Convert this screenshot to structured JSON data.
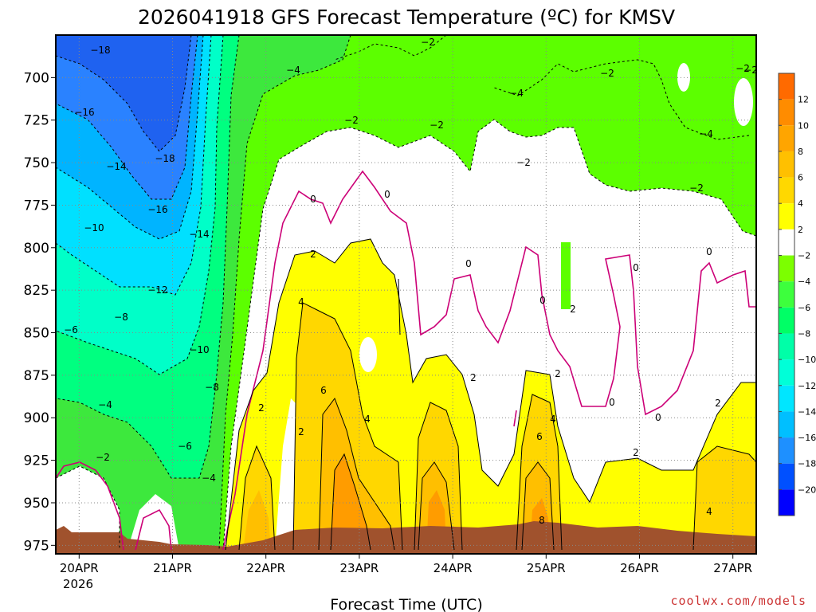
{
  "chart_data": {
    "type": "heatmap",
    "title": "2026041918 GFS Forecast Temperature (ºC) for KMSV",
    "xlabel": "Forecast Time (UTC)",
    "ylabel": "",
    "credit": "coolwx.com/models",
    "x_tick_labels": [
      "20APR",
      "21APR",
      "22APR",
      "23APR",
      "24APR",
      "25APR",
      "26APR",
      "27APR"
    ],
    "x_year_label": "2026",
    "y_tick_labels": [
      "700",
      "725",
      "750",
      "775",
      "800",
      "825",
      "850",
      "875",
      "900",
      "925",
      "950",
      "975"
    ],
    "y_axis": "pressure (hPa), decreasing upward",
    "ylim": [
      975,
      675
    ],
    "xlim": [
      "2026-04-19 18Z",
      "2026-04-27 06Z"
    ],
    "grid": true,
    "legend": "colorbar-right",
    "colorbar": {
      "tick_labels": [
        "12",
        "10",
        "8",
        "6",
        "4",
        "2",
        "−2",
        "−4",
        "−6",
        "−8",
        "−10",
        "−12",
        "−14",
        "−16",
        "−18",
        "−20"
      ],
      "colors": [
        "#ff6a00",
        "#ff8c00",
        "#ffa500",
        "#ffc000",
        "#ffd800",
        "#ffff00",
        "#ffffff",
        "#7cff00",
        "#3dff3d",
        "#00ff66",
        "#00ffa8",
        "#00ffd8",
        "#00e6ff",
        "#00bfff",
        "#1e90ff",
        "#0050ff",
        "#0000ff"
      ]
    },
    "x": [
      "2026-04-19 18Z",
      "2026-04-20 12Z",
      "2026-04-21 00Z",
      "2026-04-21 12Z",
      "2026-04-22 00Z",
      "2026-04-22 12Z",
      "2026-04-23 00Z",
      "2026-04-23 12Z",
      "2026-04-24 00Z",
      "2026-04-24 12Z",
      "2026-04-25 00Z",
      "2026-04-25 12Z",
      "2026-04-26 00Z",
      "2026-04-26 12Z",
      "2026-04-27 00Z"
    ],
    "contour_labels": [
      "−18",
      "−16",
      "−14",
      "−10",
      "−6",
      "−4",
      "−2",
      "−18",
      "−16",
      "−14",
      "−12",
      "−8",
      "−10",
      "−8",
      "−6",
      "−4",
      "−4",
      "−2",
      "−2",
      "−4",
      "−2",
      "−2",
      "−4",
      "−2",
      "−2",
      "0",
      "0",
      "2",
      "4",
      "2",
      "6",
      "2",
      "4",
      "2",
      "0",
      "0",
      "2",
      "0",
      "4",
      "6",
      "8",
      "0",
      "0",
      "0",
      "2",
      "2",
      "2",
      "4",
      "−2",
      "−2"
    ],
    "terrain_color": "#a0522d"
  }
}
